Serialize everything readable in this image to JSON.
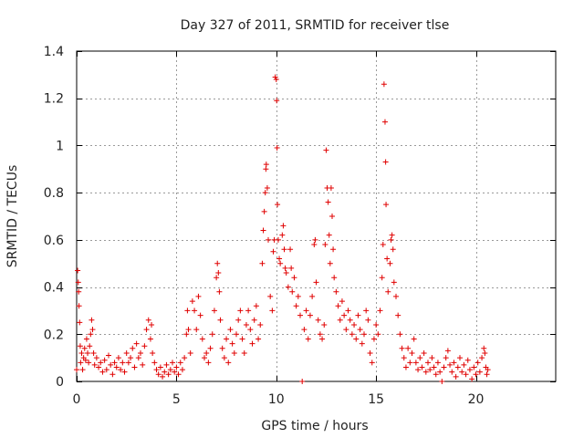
{
  "chart_data": {
    "type": "scatter",
    "title": "Day 327 of 2011, SRMTID for receiver tlse",
    "xlabel": "GPS time / hours",
    "ylabel": "SRMTID / TECUs",
    "xlim": [
      0,
      24
    ],
    "ylim": [
      0,
      1.4
    ],
    "xticks": [
      0,
      5,
      10,
      15,
      20
    ],
    "xtick_labels": [
      "0",
      "5",
      "10",
      "15",
      "20"
    ],
    "yticks": [
      0,
      0.2,
      0.4,
      0.6,
      0.8,
      1.0,
      1.2,
      1.4
    ],
    "ytick_labels": [
      "0",
      "0.2",
      "0.4",
      "0.6",
      "0.8",
      "1",
      "1.2",
      "1.4"
    ],
    "grid": true,
    "marker": "plus",
    "color": "#e00000",
    "series": [
      {
        "name": "SRMTID",
        "points": [
          [
            0.0,
            0.05
          ],
          [
            0.05,
            0.47
          ],
          [
            0.08,
            0.42
          ],
          [
            0.1,
            0.38
          ],
          [
            0.12,
            0.32
          ],
          [
            0.15,
            0.25
          ],
          [
            0.18,
            0.15
          ],
          [
            0.2,
            0.08
          ],
          [
            0.25,
            0.12
          ],
          [
            0.3,
            0.05
          ],
          [
            0.35,
            0.1
          ],
          [
            0.4,
            0.14
          ],
          [
            0.45,
            0.09
          ],
          [
            0.5,
            0.18
          ],
          [
            0.55,
            0.12
          ],
          [
            0.6,
            0.08
          ],
          [
            0.65,
            0.15
          ],
          [
            0.7,
            0.2
          ],
          [
            0.75,
            0.26
          ],
          [
            0.8,
            0.22
          ],
          [
            0.85,
            0.12
          ],
          [
            0.9,
            0.07
          ],
          [
            1.0,
            0.1
          ],
          [
            1.1,
            0.06
          ],
          [
            1.2,
            0.08
          ],
          [
            1.3,
            0.04
          ],
          [
            1.4,
            0.09
          ],
          [
            1.5,
            0.05
          ],
          [
            1.6,
            0.11
          ],
          [
            1.7,
            0.07
          ],
          [
            1.8,
            0.03
          ],
          [
            1.9,
            0.08
          ],
          [
            2.0,
            0.06
          ],
          [
            2.1,
            0.1
          ],
          [
            2.2,
            0.05
          ],
          [
            2.3,
            0.08
          ],
          [
            2.4,
            0.04
          ],
          [
            2.5,
            0.12
          ],
          [
            2.6,
            0.08
          ],
          [
            2.7,
            0.1
          ],
          [
            2.8,
            0.14
          ],
          [
            2.9,
            0.06
          ],
          [
            3.0,
            0.16
          ],
          [
            3.1,
            0.1
          ],
          [
            3.2,
            0.12
          ],
          [
            3.3,
            0.07
          ],
          [
            3.4,
            0.15
          ],
          [
            3.5,
            0.22
          ],
          [
            3.6,
            0.26
          ],
          [
            3.7,
            0.18
          ],
          [
            3.75,
            0.24
          ],
          [
            3.8,
            0.12
          ],
          [
            3.9,
            0.08
          ],
          [
            4.0,
            0.05
          ],
          [
            4.1,
            0.03
          ],
          [
            4.2,
            0.06
          ],
          [
            4.3,
            0.02
          ],
          [
            4.4,
            0.04
          ],
          [
            4.5,
            0.07
          ],
          [
            4.6,
            0.03
          ],
          [
            4.7,
            0.05
          ],
          [
            4.8,
            0.08
          ],
          [
            4.9,
            0.04
          ],
          [
            5.0,
            0.06
          ],
          [
            5.1,
            0.03
          ],
          [
            5.2,
            0.08
          ],
          [
            5.3,
            0.05
          ],
          [
            5.4,
            0.1
          ],
          [
            5.5,
            0.2
          ],
          [
            5.55,
            0.3
          ],
          [
            5.6,
            0.22
          ],
          [
            5.7,
            0.12
          ],
          [
            5.8,
            0.34
          ],
          [
            5.9,
            0.3
          ],
          [
            6.0,
            0.22
          ],
          [
            6.1,
            0.36
          ],
          [
            6.2,
            0.28
          ],
          [
            6.3,
            0.18
          ],
          [
            6.4,
            0.1
          ],
          [
            6.5,
            0.12
          ],
          [
            6.6,
            0.08
          ],
          [
            6.7,
            0.14
          ],
          [
            6.8,
            0.2
          ],
          [
            6.9,
            0.3
          ],
          [
            7.0,
            0.44
          ],
          [
            7.05,
            0.5
          ],
          [
            7.1,
            0.46
          ],
          [
            7.15,
            0.38
          ],
          [
            7.2,
            0.26
          ],
          [
            7.3,
            0.14
          ],
          [
            7.4,
            0.1
          ],
          [
            7.5,
            0.18
          ],
          [
            7.6,
            0.08
          ],
          [
            7.7,
            0.22
          ],
          [
            7.8,
            0.16
          ],
          [
            7.9,
            0.12
          ],
          [
            8.0,
            0.2
          ],
          [
            8.1,
            0.26
          ],
          [
            8.2,
            0.3
          ],
          [
            8.3,
            0.18
          ],
          [
            8.4,
            0.12
          ],
          [
            8.5,
            0.24
          ],
          [
            8.6,
            0.3
          ],
          [
            8.7,
            0.22
          ],
          [
            8.8,
            0.16
          ],
          [
            8.9,
            0.26
          ],
          [
            9.0,
            0.32
          ],
          [
            9.1,
            0.18
          ],
          [
            9.2,
            0.24
          ],
          [
            9.3,
            0.5
          ],
          [
            9.35,
            0.64
          ],
          [
            9.4,
            0.72
          ],
          [
            9.45,
            0.8
          ],
          [
            9.48,
            0.9
          ],
          [
            9.5,
            0.92
          ],
          [
            9.55,
            0.82
          ],
          [
            9.6,
            0.6
          ],
          [
            9.7,
            0.36
          ],
          [
            9.8,
            0.3
          ],
          [
            9.85,
            0.55
          ],
          [
            9.9,
            0.6
          ],
          [
            9.95,
            1.29
          ],
          [
            10.0,
            1.28
          ],
          [
            10.02,
            1.19
          ],
          [
            10.04,
            0.99
          ],
          [
            10.06,
            0.75
          ],
          [
            10.1,
            0.6
          ],
          [
            10.15,
            0.52
          ],
          [
            10.2,
            0.5
          ],
          [
            10.3,
            0.62
          ],
          [
            10.35,
            0.66
          ],
          [
            10.4,
            0.56
          ],
          [
            10.45,
            0.48
          ],
          [
            10.5,
            0.46
          ],
          [
            10.6,
            0.4
          ],
          [
            10.7,
            0.56
          ],
          [
            10.75,
            0.48
          ],
          [
            10.8,
            0.38
          ],
          [
            10.9,
            0.44
          ],
          [
            11.0,
            0.32
          ],
          [
            11.1,
            0.36
          ],
          [
            11.2,
            0.28
          ],
          [
            11.3,
            0.0
          ],
          [
            11.4,
            0.22
          ],
          [
            11.5,
            0.3
          ],
          [
            11.6,
            0.18
          ],
          [
            11.7,
            0.28
          ],
          [
            11.8,
            0.36
          ],
          [
            11.9,
            0.58
          ],
          [
            11.95,
            0.6
          ],
          [
            12.0,
            0.42
          ],
          [
            12.1,
            0.26
          ],
          [
            12.2,
            0.2
          ],
          [
            12.3,
            0.18
          ],
          [
            12.4,
            0.24
          ],
          [
            12.45,
            0.58
          ],
          [
            12.5,
            0.98
          ],
          [
            12.55,
            0.82
          ],
          [
            12.6,
            0.76
          ],
          [
            12.65,
            0.62
          ],
          [
            12.7,
            0.5
          ],
          [
            12.75,
            0.82
          ],
          [
            12.8,
            0.7
          ],
          [
            12.85,
            0.56
          ],
          [
            12.9,
            0.44
          ],
          [
            13.0,
            0.38
          ],
          [
            13.1,
            0.32
          ],
          [
            13.2,
            0.26
          ],
          [
            13.3,
            0.34
          ],
          [
            13.4,
            0.28
          ],
          [
            13.5,
            0.22
          ],
          [
            13.6,
            0.3
          ],
          [
            13.7,
            0.26
          ],
          [
            13.8,
            0.2
          ],
          [
            13.9,
            0.24
          ],
          [
            14.0,
            0.18
          ],
          [
            14.1,
            0.28
          ],
          [
            14.2,
            0.22
          ],
          [
            14.3,
            0.16
          ],
          [
            14.4,
            0.2
          ],
          [
            14.5,
            0.3
          ],
          [
            14.6,
            0.26
          ],
          [
            14.7,
            0.12
          ],
          [
            14.8,
            0.08
          ],
          [
            14.9,
            0.18
          ],
          [
            15.0,
            0.24
          ],
          [
            15.1,
            0.2
          ],
          [
            15.2,
            0.3
          ],
          [
            15.3,
            0.44
          ],
          [
            15.35,
            0.58
          ],
          [
            15.4,
            1.26
          ],
          [
            15.45,
            1.1
          ],
          [
            15.48,
            0.93
          ],
          [
            15.5,
            0.75
          ],
          [
            15.55,
            0.52
          ],
          [
            15.6,
            0.38
          ],
          [
            15.7,
            0.5
          ],
          [
            15.75,
            0.6
          ],
          [
            15.8,
            0.62
          ],
          [
            15.85,
            0.56
          ],
          [
            15.9,
            0.42
          ],
          [
            16.0,
            0.36
          ],
          [
            16.1,
            0.28
          ],
          [
            16.2,
            0.2
          ],
          [
            16.3,
            0.14
          ],
          [
            16.4,
            0.1
          ],
          [
            16.5,
            0.06
          ],
          [
            16.6,
            0.14
          ],
          [
            16.7,
            0.08
          ],
          [
            16.8,
            0.12
          ],
          [
            16.9,
            0.18
          ],
          [
            17.0,
            0.08
          ],
          [
            17.1,
            0.05
          ],
          [
            17.2,
            0.1
          ],
          [
            17.3,
            0.06
          ],
          [
            17.4,
            0.12
          ],
          [
            17.5,
            0.04
          ],
          [
            17.6,
            0.08
          ],
          [
            17.7,
            0.05
          ],
          [
            17.8,
            0.1
          ],
          [
            17.9,
            0.06
          ],
          [
            18.0,
            0.03
          ],
          [
            18.1,
            0.08
          ],
          [
            18.2,
            0.04
          ],
          [
            18.3,
            0.0
          ],
          [
            18.4,
            0.06
          ],
          [
            18.5,
            0.1
          ],
          [
            18.6,
            0.13
          ],
          [
            18.7,
            0.07
          ],
          [
            18.8,
            0.04
          ],
          [
            18.9,
            0.08
          ],
          [
            19.0,
            0.02
          ],
          [
            19.1,
            0.06
          ],
          [
            19.2,
            0.1
          ],
          [
            19.3,
            0.04
          ],
          [
            19.4,
            0.07
          ],
          [
            19.5,
            0.03
          ],
          [
            19.6,
            0.09
          ],
          [
            19.7,
            0.05
          ],
          [
            19.8,
            0.01
          ],
          [
            19.9,
            0.06
          ],
          [
            20.0,
            0.03
          ],
          [
            20.1,
            0.08
          ],
          [
            20.2,
            0.04
          ],
          [
            20.3,
            0.1
          ],
          [
            20.4,
            0.14
          ],
          [
            20.45,
            0.12
          ],
          [
            20.5,
            0.06
          ],
          [
            20.55,
            0.03
          ],
          [
            20.6,
            0.05
          ]
        ]
      }
    ]
  }
}
